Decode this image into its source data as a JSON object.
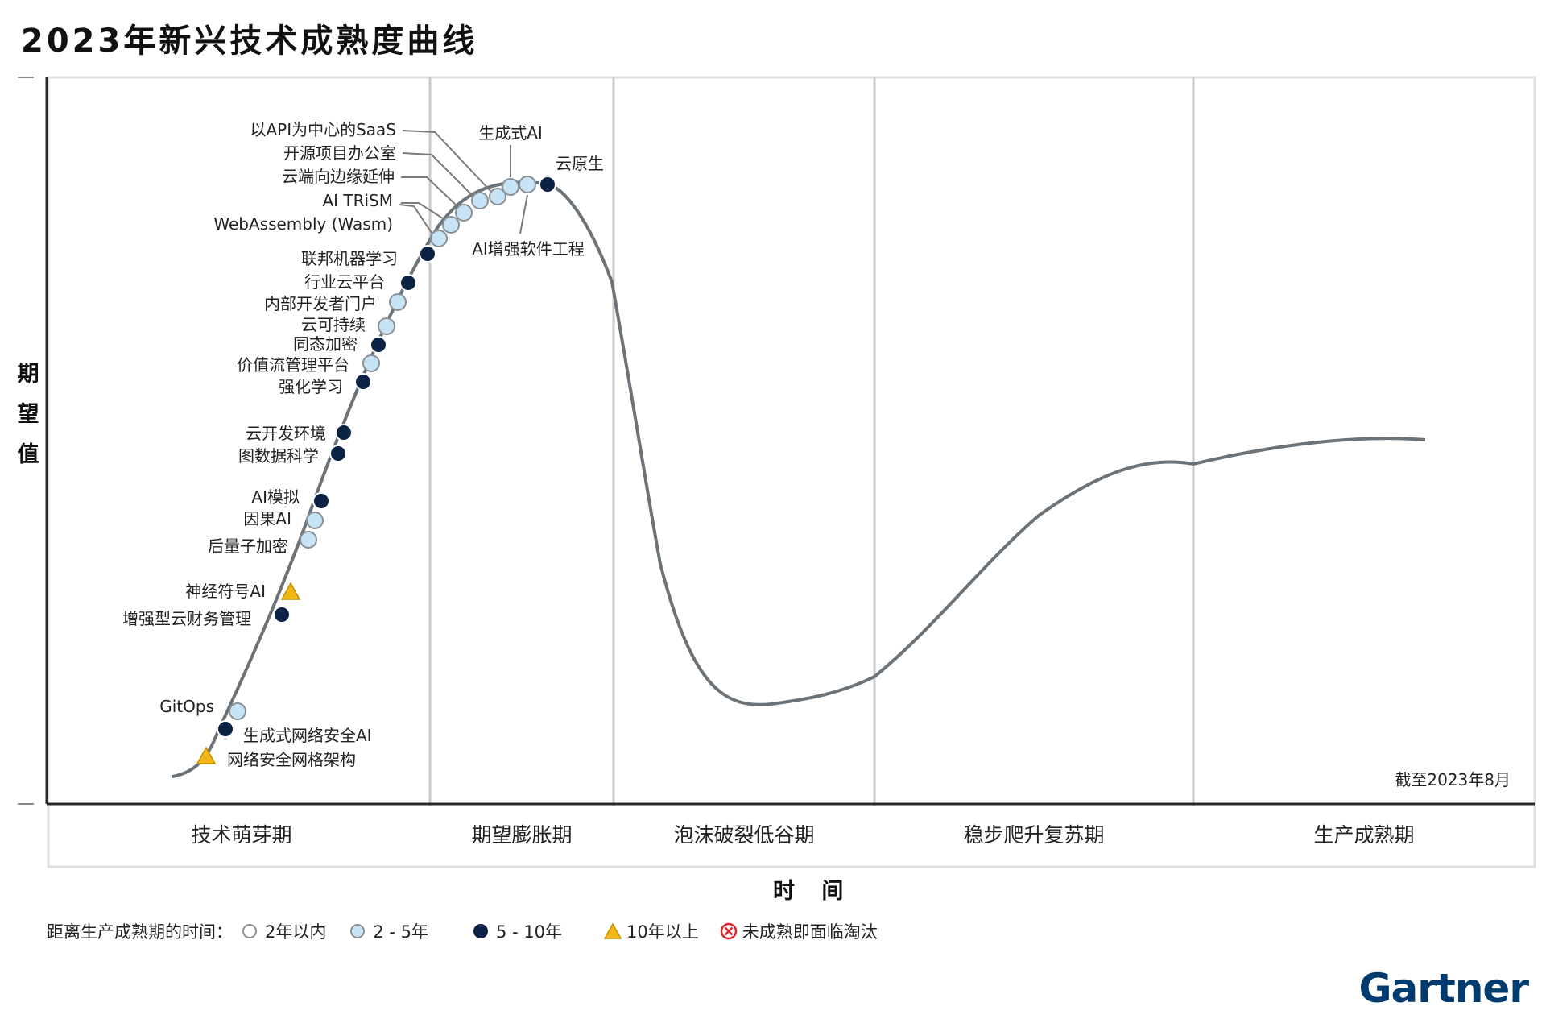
{
  "title": "2023年新兴技术成熟度曲线",
  "y_label": "期望值",
  "x_label": "时 间",
  "as_of": "截至2023年8月",
  "brand": "Gartner",
  "phases": [
    "技术萌芽期",
    "期望膨胀期",
    "泡沫破裂低谷期",
    "稳步爬升复苏期",
    "生产成熟期"
  ],
  "legend": {
    "prefix": "距离生产成熟期的时间：",
    "items": [
      {
        "label": "2年以内",
        "style": "white-circle"
      },
      {
        "label": "2 - 5年",
        "style": "light-blue-circle"
      },
      {
        "label": "5 - 10年",
        "style": "dark-navy-circle"
      },
      {
        "label": "10年以上",
        "style": "yellow-triangle"
      },
      {
        "label": "未成熟即面临淘汰",
        "style": "red-x-circle"
      }
    ]
  },
  "colors": {
    "light": "#c6e4f5",
    "dark": "#0b2245",
    "yellow": "#f2b617",
    "red": "#e0222a",
    "curve": "#6c7378",
    "grid": "#c9c9c9",
    "axis": "#2a2a2a"
  },
  "technologies": [
    {
      "name": "网络安全网格架构",
      "category": "10年以上"
    },
    {
      "name": "生成式网络安全AI",
      "category": "5 - 10年"
    },
    {
      "name": "GitOps",
      "category": "2 - 5年"
    },
    {
      "name": "增强型云财务管理",
      "category": "5 - 10年"
    },
    {
      "name": "神经符号AI",
      "category": "10年以上"
    },
    {
      "name": "后量子加密",
      "category": "2 - 5年"
    },
    {
      "name": "因果AI",
      "category": "2 - 5年"
    },
    {
      "name": "AI模拟",
      "category": "5 - 10年"
    },
    {
      "name": "图数据科学",
      "category": "5 - 10年"
    },
    {
      "name": "云开发环境",
      "category": "5 - 10年"
    },
    {
      "name": "强化学习",
      "category": "5 - 10年"
    },
    {
      "name": "价值流管理平台",
      "category": "2 - 5年"
    },
    {
      "name": "同态加密",
      "category": "5 - 10年"
    },
    {
      "name": "云可持续",
      "category": "2 - 5年"
    },
    {
      "name": "内部开发者门户",
      "category": "2 - 5年"
    },
    {
      "name": "行业云平台",
      "category": "5 - 10年"
    },
    {
      "name": "联邦机器学习",
      "category": "5 - 10年"
    },
    {
      "name": "WebAssembly (Wasm)",
      "category": "2 - 5年"
    },
    {
      "name": "AI TRiSM",
      "category": "2 - 5年"
    },
    {
      "name": "云端向边缘延伸",
      "category": "2 - 5年"
    },
    {
      "name": "开源项目办公室",
      "category": "2 - 5年"
    },
    {
      "name": "以API为中心的SaaS",
      "category": "2 - 5年"
    },
    {
      "name": "生成式AI",
      "category": "2 - 5年"
    },
    {
      "name": "AI增强软件工程",
      "category": "2 - 5年"
    },
    {
      "name": "云原生",
      "category": "5 - 10年"
    }
  ]
}
